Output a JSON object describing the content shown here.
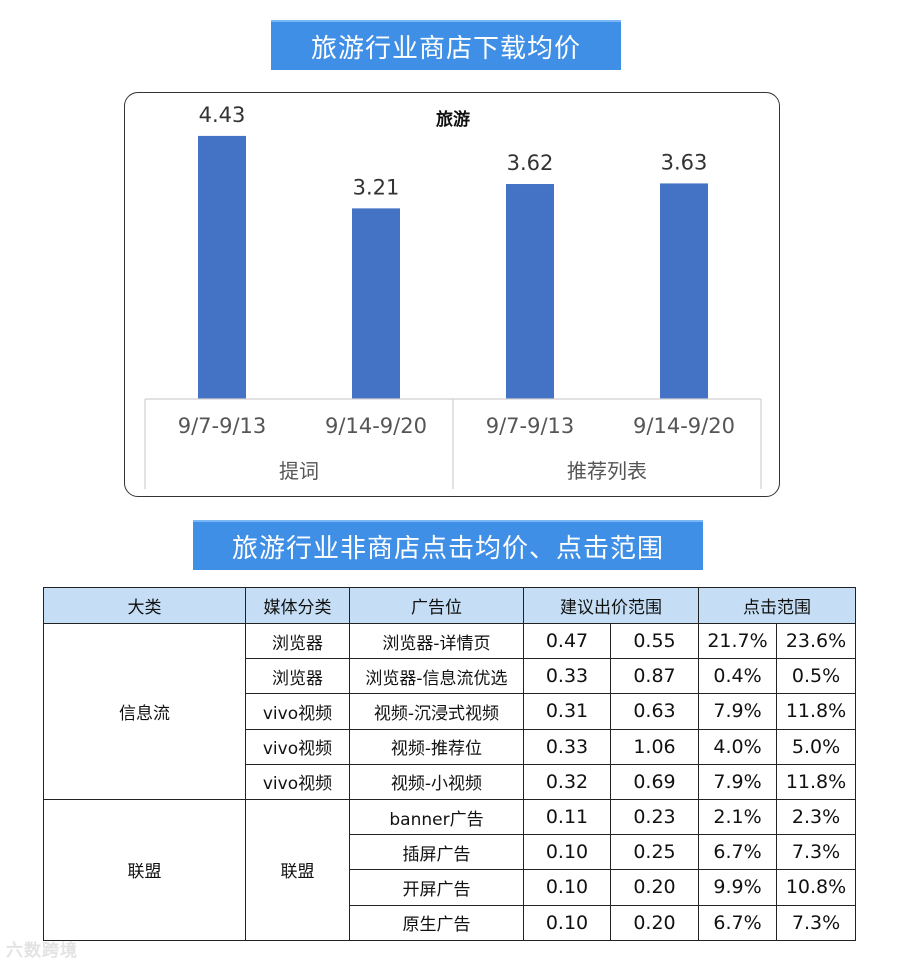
{
  "banner1": "旅游行业商店下载均价",
  "banner2": "旅游行业非商店点击均价、点击范围",
  "chart_data": {
    "type": "bar",
    "title": "旅游",
    "categories": [
      "9/7-9/13",
      "9/14-9/20",
      "9/7-9/13",
      "9/14-9/20"
    ],
    "groups": [
      {
        "label": "提词",
        "span": [
          0,
          1
        ]
      },
      {
        "label": "推荐列表",
        "span": [
          2,
          3
        ]
      }
    ],
    "values": [
      4.43,
      3.21,
      3.62,
      3.63
    ],
    "value_labels": [
      "4.43",
      "3.21",
      "3.62",
      "3.63"
    ],
    "ylim": [
      0,
      4.9
    ],
    "bar_color": "#4472c4",
    "legend": "none",
    "grid": false
  },
  "table": {
    "headers": {
      "category": "大类",
      "media": "媒体分类",
      "ad_slot": "广告位",
      "bid_range": "建议出价范围",
      "click_range": "点击范围"
    },
    "groups": [
      {
        "category": "信息流",
        "rows": [
          {
            "media": "浏览器",
            "ad_slot": "浏览器-详情页",
            "bid_min": "0.47",
            "bid_max": "0.55",
            "click_min": "21.7%",
            "click_max": "23.6%"
          },
          {
            "media": "浏览器",
            "ad_slot": "浏览器-信息流优选",
            "bid_min": "0.33",
            "bid_max": "0.87",
            "click_min": "0.4%",
            "click_max": "0.5%"
          },
          {
            "media": "vivo视频",
            "ad_slot": "视频-沉浸式视频",
            "bid_min": "0.31",
            "bid_max": "0.63",
            "click_min": "7.9%",
            "click_max": "11.8%"
          },
          {
            "media": "vivo视频",
            "ad_slot": "视频-推荐位",
            "bid_min": "0.33",
            "bid_max": "1.06",
            "click_min": "4.0%",
            "click_max": "5.0%"
          },
          {
            "media": "vivo视频",
            "ad_slot": "视频-小视频",
            "bid_min": "0.32",
            "bid_max": "0.69",
            "click_min": "7.9%",
            "click_max": "11.8%"
          }
        ]
      },
      {
        "category": "联盟",
        "media": "联盟",
        "rows": [
          {
            "ad_slot": "banner广告",
            "bid_min": "0.11",
            "bid_max": "0.23",
            "click_min": "2.1%",
            "click_max": "2.3%"
          },
          {
            "ad_slot": "插屏广告",
            "bid_min": "0.10",
            "bid_max": "0.25",
            "click_min": "6.7%",
            "click_max": "7.3%"
          },
          {
            "ad_slot": "开屏广告",
            "bid_min": "0.10",
            "bid_max": "0.20",
            "click_min": "9.9%",
            "click_max": "10.8%"
          },
          {
            "ad_slot": "原生广告",
            "bid_min": "0.10",
            "bid_max": "0.20",
            "click_min": "6.7%",
            "click_max": "7.3%"
          }
        ]
      }
    ]
  },
  "watermark": "六数跨境"
}
